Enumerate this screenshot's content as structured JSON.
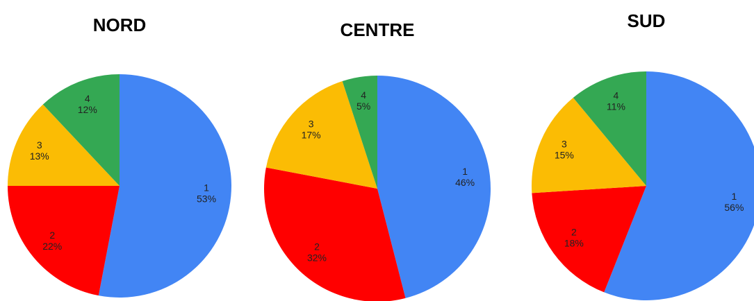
{
  "chart_data": [
    {
      "type": "pie",
      "title": "NORD",
      "categories": [
        "1",
        "2",
        "3",
        "4"
      ],
      "values": [
        53,
        22,
        13,
        12
      ],
      "value_labels": [
        "53%",
        "22%",
        "13%",
        "12%"
      ],
      "colors": [
        "#4285f4",
        "#ff0000",
        "#fbbc04",
        "#34a853"
      ]
    },
    {
      "type": "pie",
      "title": "CENTRE",
      "categories": [
        "1",
        "2",
        "3",
        "4"
      ],
      "values": [
        46,
        32,
        17,
        5
      ],
      "value_labels": [
        "46%",
        "32%",
        "17%",
        "5%"
      ],
      "colors": [
        "#4285f4",
        "#ff0000",
        "#fbbc04",
        "#34a853"
      ]
    },
    {
      "type": "pie",
      "title": "SUD",
      "categories": [
        "1",
        "2",
        "3",
        "4"
      ],
      "values": [
        56,
        18,
        15,
        11
      ],
      "value_labels": [
        "56%",
        "18%",
        "15%",
        "11%"
      ],
      "colors": [
        "#4285f4",
        "#ff0000",
        "#fbbc04",
        "#34a853"
      ]
    }
  ]
}
